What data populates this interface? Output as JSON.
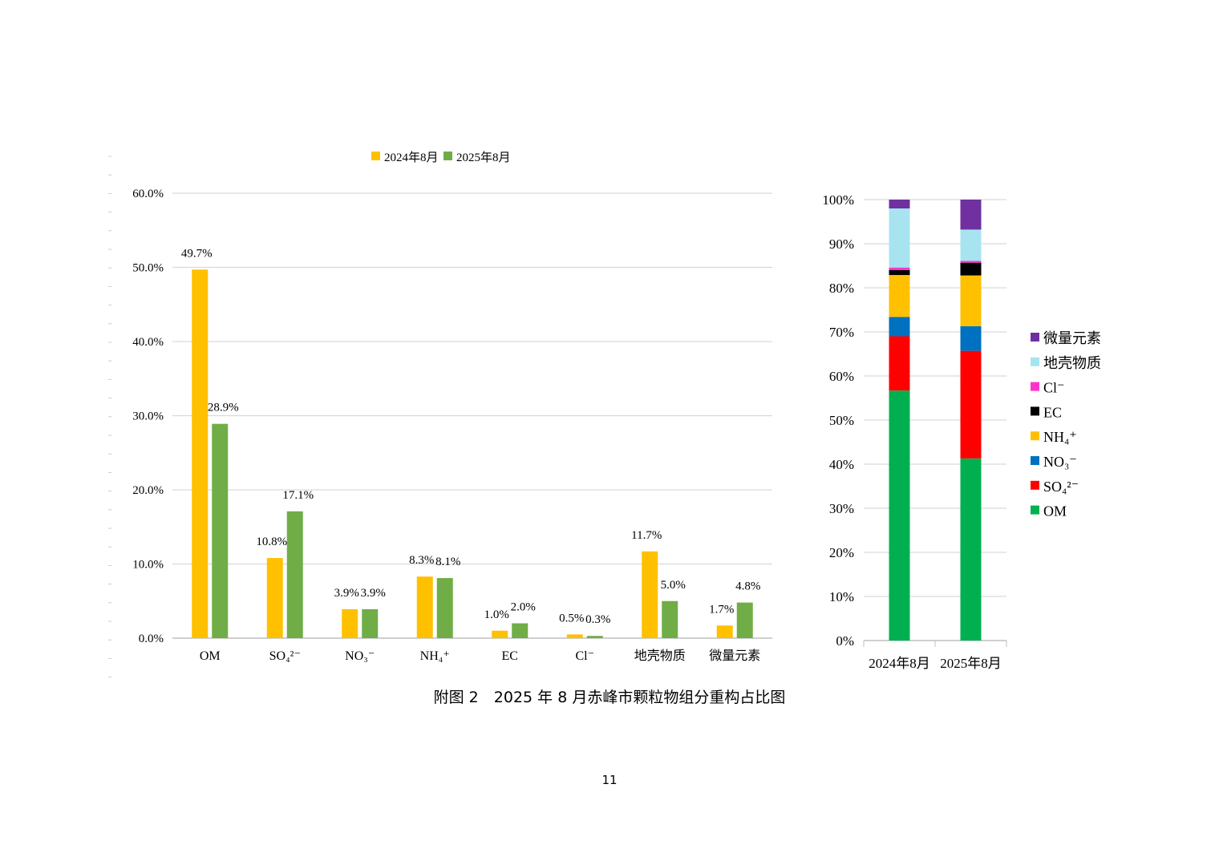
{
  "caption": "附图 2　2025 年 8 月赤峰市颗粒物组分重构占比图",
  "page_number": "11",
  "colors": {
    "series_2024": "#FFC000",
    "series_2025": "#70AD47",
    "grid": "#d9d9d9",
    "axis": "#bfbfbf"
  },
  "chart_data": [
    {
      "type": "bar",
      "title": "",
      "xlabel": "",
      "ylabel": "",
      "ylim": [
        0,
        60
      ],
      "yticks": [
        "0.0%",
        "10.0%",
        "20.0%",
        "30.0%",
        "40.0%",
        "50.0%",
        "60.0%"
      ],
      "grid": true,
      "legend_position": "top",
      "categories": [
        "OM",
        "SO₄²⁻",
        "NO₃⁻",
        "NH₄⁺",
        "EC",
        "Cl⁻",
        "地壳物质",
        "微量元素"
      ],
      "series": [
        {
          "name": "2024年8月",
          "color": "#FFC000",
          "values": [
            49.7,
            10.8,
            3.9,
            8.3,
            1.0,
            0.5,
            11.7,
            1.7
          ],
          "labels": [
            "49.7%",
            "10.8%",
            "3.9%",
            "8.3%",
            "1.0%",
            "0.5%",
            "11.7%",
            "1.7%"
          ]
        },
        {
          "name": "2025年8月",
          "color": "#70AD47",
          "values": [
            28.9,
            17.1,
            3.9,
            8.1,
            2.0,
            0.3,
            5.0,
            4.8
          ],
          "labels": [
            "28.9%",
            "17.1%",
            "3.9%",
            "8.1%",
            "2.0%",
            "0.3%",
            "5.0%",
            "4.8%"
          ]
        }
      ]
    },
    {
      "type": "bar",
      "stacked": true,
      "normalized": true,
      "title": "",
      "xlabel": "",
      "ylabel": "",
      "ylim": [
        0,
        100
      ],
      "yticks": [
        "0%",
        "10%",
        "20%",
        "30%",
        "40%",
        "50%",
        "60%",
        "70%",
        "80%",
        "90%",
        "100%"
      ],
      "grid": true,
      "legend_position": "right",
      "categories": [
        "2024年8月",
        "2025年8月"
      ],
      "series": [
        {
          "name": "OM",
          "color": "#00B050",
          "values": [
            56.7,
            41.3
          ]
        },
        {
          "name": "SO₄²⁻",
          "color": "#FF0000",
          "values": [
            12.3,
            24.4
          ]
        },
        {
          "name": "NO₃⁻",
          "color": "#0070C0",
          "values": [
            4.4,
            5.6
          ]
        },
        {
          "name": "NH₄⁺",
          "color": "#FFC000",
          "values": [
            9.5,
            11.5
          ]
        },
        {
          "name": "EC",
          "color": "#000000",
          "values": [
            1.1,
            2.9
          ]
        },
        {
          "name": "Cl⁻",
          "color": "#FF33CC",
          "values": [
            0.6,
            0.4
          ]
        },
        {
          "name": "地壳物质",
          "color": "#A7E4F0",
          "values": [
            13.4,
            7.1
          ]
        },
        {
          "name": "微量元素",
          "color": "#7030A0",
          "values": [
            2.0,
            6.8
          ]
        }
      ]
    }
  ]
}
